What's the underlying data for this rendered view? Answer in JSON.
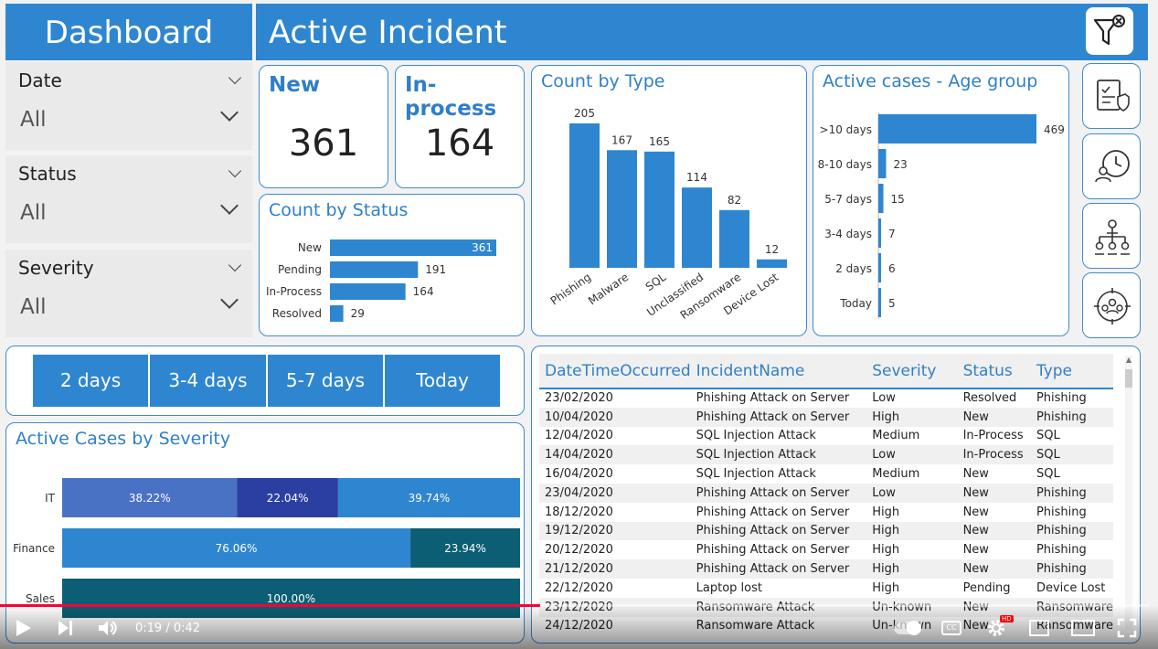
{
  "header": {
    "dashboard_title": "Dashboard",
    "main_title": "Active Incident"
  },
  "slicers": [
    {
      "label": "Date",
      "value": "All"
    },
    {
      "label": "Status",
      "value": "All"
    },
    {
      "label": "Severity",
      "value": "All"
    }
  ],
  "kpis": {
    "new_label": "New",
    "new_value": "361",
    "inprocess_label": "In-process",
    "inprocess_value": "164"
  },
  "status_chart": {
    "title": "Count by Status"
  },
  "type_chart": {
    "title": "Count by Type"
  },
  "age_chart": {
    "title": "Active cases - Age group"
  },
  "severity_chart": {
    "title": "Active Cases by Severity"
  },
  "day_buttons": [
    "2 days",
    "3-4 days",
    "5-7 days",
    "Today"
  ],
  "side_buttons": [
    "checklist-shield-icon",
    "clock-person-icon",
    "org-chart-icon",
    "team-target-icon"
  ],
  "table": {
    "headers": [
      "DateTimeOccurred",
      "IncidentName",
      "Severity",
      "Status",
      "Type"
    ],
    "rows": [
      [
        "23/02/2020",
        "Phishing Attack on Server",
        "Low",
        "Resolved",
        "Phishing"
      ],
      [
        "10/04/2020",
        "Phishing Attack on Server",
        "High",
        "New",
        "Phishing"
      ],
      [
        "12/04/2020",
        "SQL Injection Attack",
        "Medium",
        "In-Process",
        "SQL"
      ],
      [
        "14/04/2020",
        "SQL Injection Attack",
        "Low",
        "In-Process",
        "SQL"
      ],
      [
        "16/04/2020",
        "SQL Injection Attack",
        "Medium",
        "New",
        "SQL"
      ],
      [
        "23/04/2020",
        "Phishing Attack on Server",
        "Low",
        "New",
        "Phishing"
      ],
      [
        "18/12/2020",
        "Phishing Attack on Server",
        "High",
        "New",
        "Phishing"
      ],
      [
        "19/12/2020",
        "Phishing Attack on Server",
        "High",
        "New",
        "Phishing"
      ],
      [
        "20/12/2020",
        "Phishing Attack on Server",
        "High",
        "New",
        "Phishing"
      ],
      [
        "21/12/2020",
        "Phishing Attack on Server",
        "High",
        "New",
        "Phishing"
      ],
      [
        "22/12/2020",
        "Laptop lost",
        "High",
        "Pending",
        "Device Lost"
      ],
      [
        "23/12/2020",
        "Ransomware Attack",
        "Un-known",
        "New",
        "Ransomware"
      ],
      [
        "24/12/2020",
        "Ransomware Attack",
        "Un-known",
        "New",
        "Ransomware"
      ]
    ]
  },
  "video": {
    "time": "0:19 / 0:42",
    "progress": 0.47,
    "hd_badge": "HD"
  },
  "colors": {
    "accent": "#2f86d0",
    "title_blue": "#2f7fc8",
    "dark_blue": "#2b3fa3",
    "teal": "#0b5e73",
    "progress_red": "#ff0033"
  },
  "chart_data": [
    {
      "type": "bar",
      "orientation": "horizontal",
      "title": "Count by Status",
      "categories": [
        "New",
        "Pending",
        "In-Process",
        "Resolved"
      ],
      "values": [
        361,
        191,
        164,
        29
      ]
    },
    {
      "type": "bar",
      "title": "Count by Type",
      "categories": [
        "Phishing",
        "Malware",
        "SQL",
        "Unclassified",
        "Ransomware",
        "Device Lost"
      ],
      "values": [
        205,
        167,
        165,
        114,
        82,
        12
      ]
    },
    {
      "type": "bar",
      "orientation": "horizontal",
      "title": "Active cases - Age group",
      "categories": [
        ">10 days",
        "8-10 days",
        "5-7 days",
        "3-4 days",
        "2 days",
        "Today"
      ],
      "values": [
        469,
        23,
        15,
        7,
        6,
        5
      ]
    },
    {
      "type": "bar",
      "orientation": "horizontal",
      "stacked": "100%",
      "title": "Active Cases by Severity",
      "categories": [
        "IT",
        "Finance",
        "Sales"
      ],
      "series": [
        {
          "values": [
            38.22,
            76.06,
            100.0
          ],
          "colors": [
            "#4a72c4",
            "#2f86d0",
            "#0b5e73"
          ]
        },
        {
          "values": [
            22.04,
            23.94,
            0
          ],
          "colors": [
            "#2b3fa3",
            "#0b5e73",
            "#0b5e73"
          ]
        },
        {
          "values": [
            39.74,
            0,
            0
          ],
          "colors": [
            "#2f86d0",
            "#2f86d0",
            "#2f86d0"
          ]
        }
      ],
      "labels": [
        [
          "38.22%",
          "22.04%",
          "39.74%"
        ],
        [
          "76.06%",
          "23.94%"
        ],
        [
          "100.00%"
        ]
      ]
    }
  ]
}
